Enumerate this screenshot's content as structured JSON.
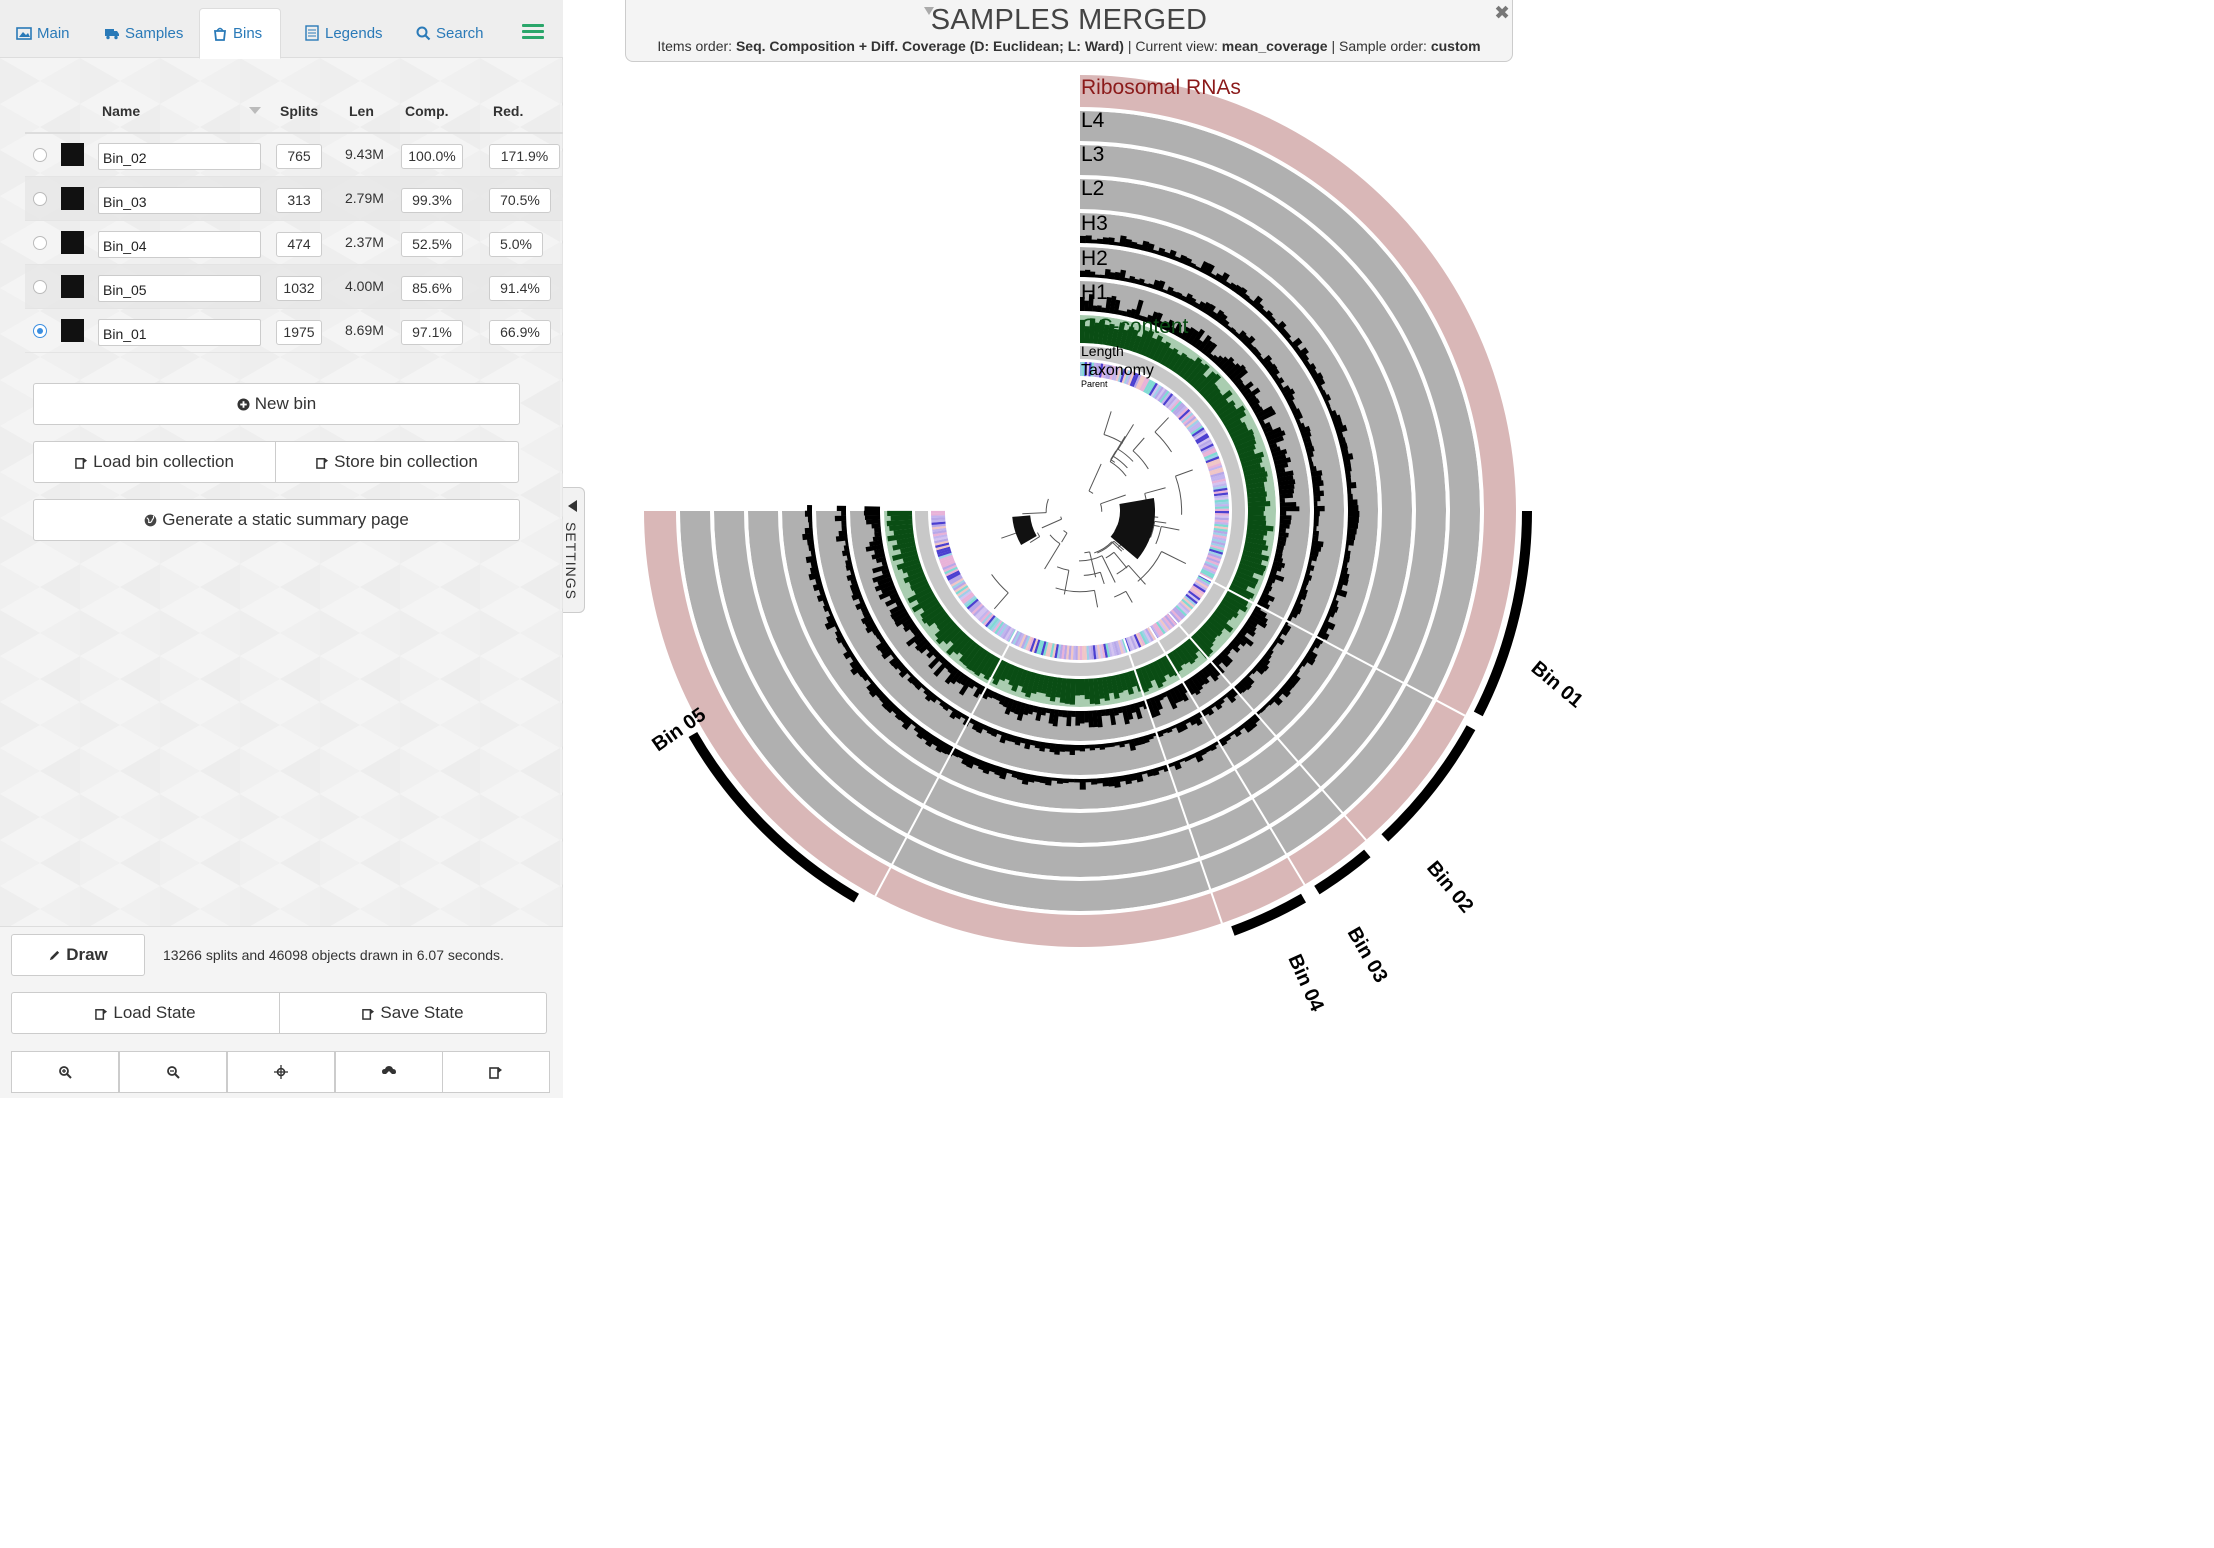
{
  "tabs": [
    {
      "label": "Main",
      "icon": "image-icon"
    },
    {
      "label": "Samples",
      "icon": "truck-icon"
    },
    {
      "label": "Bins",
      "icon": "bucket-icon"
    },
    {
      "label": "Legends",
      "icon": "list-icon"
    },
    {
      "label": "Search",
      "icon": "search-icon"
    }
  ],
  "active_tab": "Bins",
  "bins_table": {
    "headers": {
      "name": "Name",
      "splits": "Splits",
      "len": "Len",
      "comp": "Comp.",
      "red": "Red."
    },
    "rows": [
      {
        "name": "Bin_02",
        "splits": "765",
        "len": "9.43M",
        "comp": "100.0%",
        "red": "171.9%",
        "color": "#111111",
        "selected": false
      },
      {
        "name": "Bin_03",
        "splits": "313",
        "len": "2.79M",
        "comp": "99.3%",
        "red": "70.5%",
        "color": "#111111",
        "selected": false
      },
      {
        "name": "Bin_04",
        "splits": "474",
        "len": "2.37M",
        "comp": "52.5%",
        "red": "5.0%",
        "color": "#111111",
        "selected": false
      },
      {
        "name": "Bin_05",
        "splits": "1032",
        "len": "4.00M",
        "comp": "85.6%",
        "red": "91.4%",
        "color": "#111111",
        "selected": false
      },
      {
        "name": "Bin_01",
        "splits": "1975",
        "len": "8.69M",
        "comp": "97.1%",
        "red": "66.9%",
        "color": "#111111",
        "selected": true
      }
    ]
  },
  "buttons": {
    "new_bin": "New bin",
    "load_collection": "Load bin collection",
    "store_collection": "Store bin collection",
    "summary_page": "Generate a static summary page",
    "draw": "Draw",
    "load_state": "Load State",
    "save_state": "Save State"
  },
  "status_text": "13266 splits and 46098 objects drawn in 6.07 seconds.",
  "bottom_icons": [
    "zoom-in-icon",
    "zoom-out-icon",
    "center-icon",
    "upload-svg-icon",
    "save-icon"
  ],
  "settings_label": "SETTINGS",
  "title": {
    "main": "SAMPLES MERGED",
    "items_order_label": "Items order:",
    "items_order": "Seq. Composition + Diff. Coverage (D: Euclidean; L: Ward)",
    "view_label": "Current view:",
    "view": "mean_coverage",
    "sample_order_label": "Sample order:",
    "sample_order": "custom"
  },
  "layers": [
    {
      "name": "Ribosomal RNAs",
      "color": "#8b1a1a"
    },
    {
      "name": "L4",
      "color": "#000000"
    },
    {
      "name": "L3",
      "color": "#000000"
    },
    {
      "name": "L2",
      "color": "#000000"
    },
    {
      "name": "H3",
      "color": "#000000"
    },
    {
      "name": "H2",
      "color": "#000000"
    },
    {
      "name": "H1",
      "color": "#000000"
    },
    {
      "name": "GC-content",
      "color": "#0a4d14"
    },
    {
      "name": "Length",
      "color": "#000000"
    },
    {
      "name": "Taxonomy",
      "color": "#000000"
    },
    {
      "name": "Parent",
      "color": "#000000"
    }
  ],
  "bins_on_tree": [
    "Bin 01",
    "Bin 02",
    "Bin 03",
    "Bin 04",
    "Bin 05"
  ],
  "colors": {
    "accent": "#2a7ab8",
    "rrna_ring": "#d9b7b7",
    "gc_ring": "#0a4d14",
    "coverage_ring": "#b0b0b0",
    "bin_arc": "#000000"
  }
}
